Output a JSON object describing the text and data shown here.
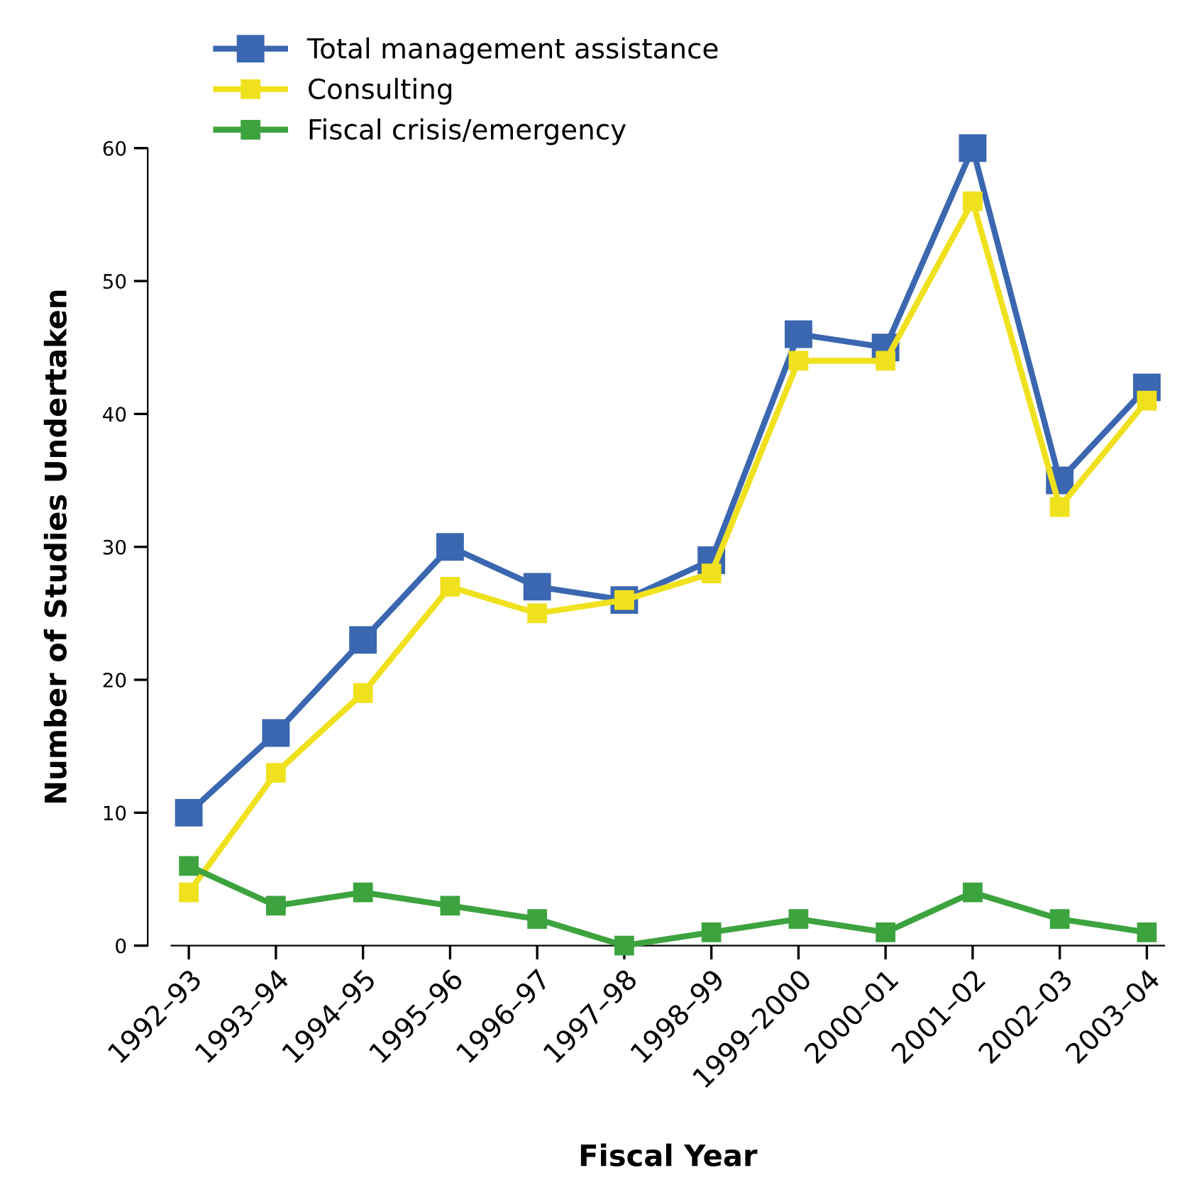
{
  "chart_data": {
    "type": "line",
    "xlabel": "Fiscal Year",
    "ylabel": "Number of Studies Undertaken",
    "categories": [
      "1992–93",
      "1993–94",
      "1994–95",
      "1995–96",
      "1996–97",
      "1997–98",
      "1998–99",
      "1999–2000",
      "2000–01",
      "2001–02",
      "2002–03",
      "2003–04"
    ],
    "series": [
      {
        "name": "Total management assistance",
        "color": "#3b67b0",
        "values": [
          10,
          16,
          23,
          30,
          27,
          26,
          29,
          46,
          45,
          60,
          35,
          42
        ]
      },
      {
        "name": "Consulting",
        "color": "#f0e11e",
        "values": [
          4,
          13,
          19,
          27,
          25,
          26,
          28,
          44,
          44,
          56,
          33,
          41
        ]
      },
      {
        "name": "Fiscal crisis/emergency",
        "color": "#3da33f",
        "values": [
          6,
          3,
          4,
          3,
          2,
          0,
          1,
          2,
          1,
          4,
          2,
          1
        ]
      }
    ],
    "ylim": [
      0,
      60
    ],
    "yticks": [
      0,
      10,
      20,
      30,
      40,
      50,
      60
    ],
    "grid": false,
    "legend": "top left",
    "marker": "square",
    "line_style": "solid"
  }
}
